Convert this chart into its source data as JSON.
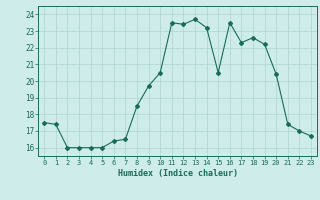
{
  "x": [
    0,
    1,
    2,
    3,
    4,
    5,
    6,
    7,
    8,
    9,
    10,
    11,
    12,
    13,
    14,
    15,
    16,
    17,
    18,
    19,
    20,
    21,
    22,
    23
  ],
  "y": [
    17.5,
    17.4,
    16.0,
    16.0,
    16.0,
    16.0,
    16.4,
    16.5,
    18.5,
    19.7,
    20.5,
    23.5,
    23.4,
    23.7,
    23.2,
    20.5,
    23.5,
    22.3,
    22.6,
    22.2,
    20.4,
    17.4,
    17.0,
    16.7
  ],
  "line_color": "#1a6b5a",
  "marker": "D",
  "marker_size": 2.0,
  "bg_color": "#ceecea",
  "grid_color": "#aed4d0",
  "tick_color": "#1a6b5a",
  "label_color": "#1a6b5a",
  "xlabel": "Humidex (Indice chaleur)",
  "ylim": [
    15.5,
    24.5
  ],
  "xlim": [
    -0.5,
    23.5
  ],
  "yticks": [
    16,
    17,
    18,
    19,
    20,
    21,
    22,
    23,
    24
  ],
  "xticks": [
    0,
    1,
    2,
    3,
    4,
    5,
    6,
    7,
    8,
    9,
    10,
    11,
    12,
    13,
    14,
    15,
    16,
    17,
    18,
    19,
    20,
    21,
    22,
    23
  ]
}
